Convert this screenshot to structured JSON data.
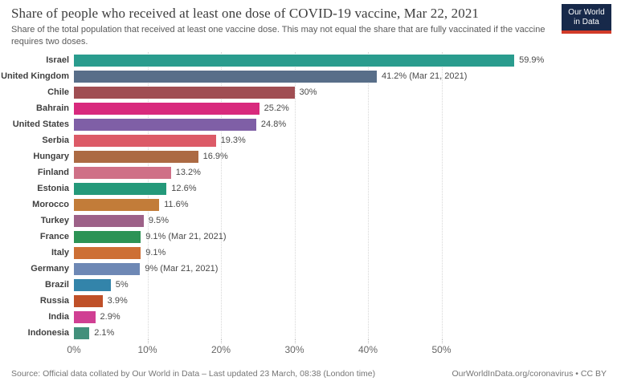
{
  "header": {
    "title": "Share of people who received at least one dose of COVID-19 vaccine, Mar 22, 2021",
    "subtitle": "Share of the total population that received at least one vaccine dose. This may not equal the share that are fully vaccinated if the vaccine requires two doses.",
    "logo": {
      "line1": "Our World",
      "line2": "in Data",
      "bg": "#17294a",
      "accent": "#d13b29"
    }
  },
  "chart_data": {
    "type": "bar",
    "orientation": "horizontal",
    "title": "Share of people who received at least one dose of COVID-19 vaccine, Mar 22, 2021",
    "xlabel": "",
    "ylabel": "",
    "xlim": [
      0,
      60
    ],
    "grid": "vertical dotted",
    "legend": "none",
    "categories": [
      "Israel",
      "United Kingdom",
      "Chile",
      "Bahrain",
      "United States",
      "Serbia",
      "Hungary",
      "Finland",
      "Estonia",
      "Morocco",
      "Turkey",
      "France",
      "Italy",
      "Germany",
      "Brazil",
      "Russia",
      "India",
      "Indonesia"
    ],
    "values": [
      59.9,
      41.2,
      30,
      25.2,
      24.8,
      19.3,
      16.9,
      13.2,
      12.6,
      11.6,
      9.5,
      9.1,
      9.1,
      9,
      5,
      3.9,
      2.9,
      2.1
    ],
    "value_labels": [
      "59.9%",
      "41.2% (Mar 21, 2021)",
      "30%",
      "25.2%",
      "24.8%",
      "19.3%",
      "16.9%",
      "13.2%",
      "12.6%",
      "11.6%",
      "9.5%",
      "9.1% (Mar 21, 2021)",
      "9.1%",
      "9% (Mar 21, 2021)",
      "5%",
      "3.9%",
      "2.9%",
      "2.1%"
    ],
    "colors": [
      "#2a9c8e",
      "#586e89",
      "#a04e53",
      "#d8297d",
      "#7f5fa6",
      "#dc5a67",
      "#ac6a43",
      "#cf7087",
      "#24997a",
      "#c27c39",
      "#9d6188",
      "#2c9355",
      "#cd6f35",
      "#6e88b5",
      "#3384aa",
      "#bf5028",
      "#d03f93",
      "#42907b"
    ],
    "x_ticks": [
      "0%",
      "10%",
      "20%",
      "30%",
      "40%",
      "50%"
    ],
    "x_tick_values": [
      0,
      10,
      20,
      30,
      40,
      50
    ]
  },
  "footer": {
    "source": "Source: Official data collated by Our World in Data – Last updated 23 March, 08:38 (London time)",
    "link": "OurWorldInData.org/coronavirus • CC BY"
  }
}
